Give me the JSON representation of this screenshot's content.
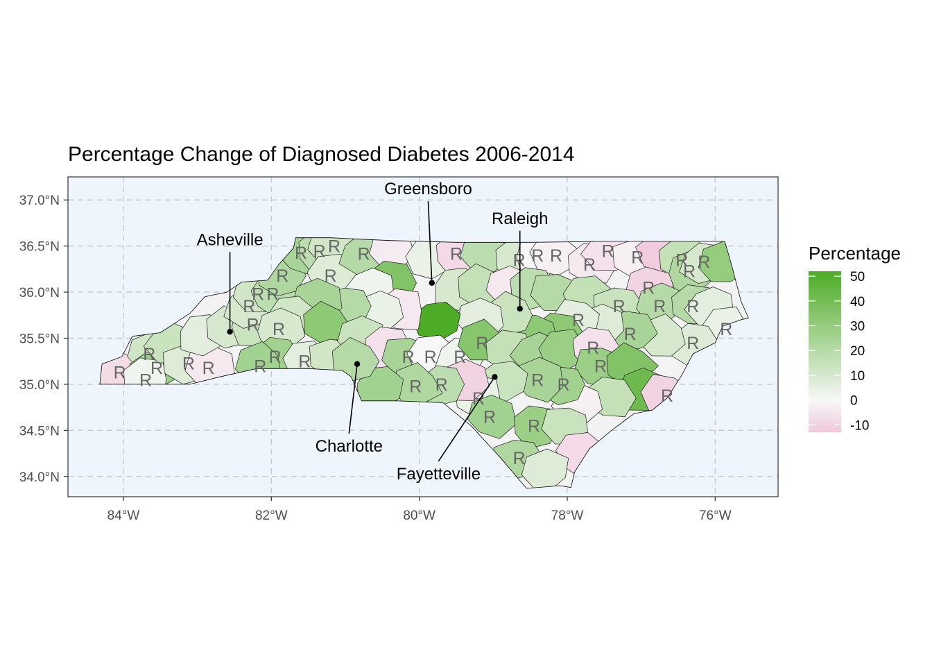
{
  "chart_data": {
    "type": "choropleth-map",
    "title": "Percentage Change of Diagnosed Diabetes 2006-2014",
    "x_ticks": [
      "84°W",
      "82°W",
      "80°W",
      "78°W",
      "76°W"
    ],
    "y_ticks": [
      "34.0°N",
      "34.5°N",
      "35.0°N",
      "35.5°N",
      "36.0°N",
      "36.5°N",
      "37.0°N"
    ],
    "xlim": [
      -84.75,
      -75.15
    ],
    "ylim": [
      33.78,
      37.25
    ],
    "grid": "dashed",
    "panel_background": "#eef5fd",
    "legend": {
      "title": "Percentage",
      "position": "right",
      "ticks": [
        "50",
        "40",
        "30",
        "20",
        "10",
        "0",
        "-10"
      ],
      "range": [
        -13,
        52
      ],
      "colors": {
        "low": "#f0c8dc",
        "mid": "#f7f7f7",
        "high": "#4dac26"
      }
    },
    "marker_letter": "R",
    "cities": [
      {
        "name": "Greensboro",
        "lon": -79.83,
        "lat": 36.1,
        "label_lon": -79.88,
        "label_lat": 37.06
      },
      {
        "name": "Raleigh",
        "lon": -78.64,
        "lat": 35.82,
        "label_lon": -78.64,
        "label_lat": 36.74
      },
      {
        "name": "Asheville",
        "lon": -82.56,
        "lat": 35.57,
        "label_lon": -82.56,
        "label_lat": 36.51
      },
      {
        "name": "Charlotte",
        "lon": -80.84,
        "lat": 35.22,
        "label_lon": -80.95,
        "label_lat": 34.27
      },
      {
        "name": "Fayetteville",
        "lon": -78.98,
        "lat": 35.08,
        "label_lon": -79.74,
        "label_lat": 33.97
      }
    ],
    "counties": [
      {
        "lon": -84.05,
        "lat": 35.13,
        "value": -7,
        "r": true
      },
      {
        "lon": -83.65,
        "lat": 35.33,
        "value": 12,
        "r": true
      },
      {
        "lon": -83.55,
        "lat": 35.18,
        "value": 28,
        "r": true
      },
      {
        "lon": -83.7,
        "lat": 35.05,
        "value": 2,
        "r": true
      },
      {
        "lon": -83.35,
        "lat": 35.45,
        "value": 14,
        "r": false
      },
      {
        "lon": -83.12,
        "lat": 35.23,
        "value": 8,
        "r": true
      },
      {
        "lon": -82.85,
        "lat": 35.18,
        "value": -4,
        "r": true
      },
      {
        "lon": -82.95,
        "lat": 35.55,
        "value": 6,
        "r": false
      },
      {
        "lon": -82.56,
        "lat": 35.6,
        "value": 10,
        "r": false
      },
      {
        "lon": -82.25,
        "lat": 35.65,
        "value": 14,
        "r": true
      },
      {
        "lon": -82.3,
        "lat": 35.85,
        "value": 10,
        "r": true
      },
      {
        "lon": -82.18,
        "lat": 35.98,
        "value": 12,
        "r": true
      },
      {
        "lon": -81.98,
        "lat": 35.98,
        "value": 18,
        "r": true
      },
      {
        "lon": -81.85,
        "lat": 36.18,
        "value": 22,
        "r": true
      },
      {
        "lon": -81.6,
        "lat": 36.43,
        "value": 24,
        "r": true
      },
      {
        "lon": -81.35,
        "lat": 36.45,
        "value": 18,
        "r": true
      },
      {
        "lon": -81.15,
        "lat": 36.5,
        "value": 12,
        "r": true
      },
      {
        "lon": -81.2,
        "lat": 36.18,
        "value": 8,
        "r": true
      },
      {
        "lon": -80.75,
        "lat": 36.42,
        "value": 20,
        "r": true
      },
      {
        "lon": -80.35,
        "lat": 36.45,
        "value": -3,
        "r": false
      },
      {
        "lon": -80.4,
        "lat": 36.1,
        "value": 36,
        "r": false
      },
      {
        "lon": -80.65,
        "lat": 36.05,
        "value": 2,
        "r": false
      },
      {
        "lon": -79.85,
        "lat": 36.35,
        "value": 4,
        "r": false
      },
      {
        "lon": -79.5,
        "lat": 36.42,
        "value": -8,
        "r": true
      },
      {
        "lon": -79.1,
        "lat": 36.42,
        "value": 18,
        "r": false
      },
      {
        "lon": -78.65,
        "lat": 36.35,
        "value": 10,
        "r": true
      },
      {
        "lon": -78.4,
        "lat": 36.4,
        "value": 0,
        "r": true
      },
      {
        "lon": -78.15,
        "lat": 36.4,
        "value": -2,
        "r": true
      },
      {
        "lon": -77.7,
        "lat": 36.3,
        "value": -4,
        "r": true
      },
      {
        "lon": -77.45,
        "lat": 36.45,
        "value": -6,
        "r": true
      },
      {
        "lon": -77.05,
        "lat": 36.38,
        "value": -2,
        "r": true
      },
      {
        "lon": -76.9,
        "lat": 36.05,
        "value": -10,
        "r": true
      },
      {
        "lon": -76.7,
        "lat": 36.45,
        "value": -12,
        "r": false
      },
      {
        "lon": -76.45,
        "lat": 36.35,
        "value": 16,
        "r": true
      },
      {
        "lon": -76.35,
        "lat": 36.23,
        "value": 22,
        "r": true
      },
      {
        "lon": -76.15,
        "lat": 36.33,
        "value": 10,
        "r": true
      },
      {
        "lon": -75.9,
        "lat": 36.3,
        "value": 30,
        "r": false
      },
      {
        "lon": -79.5,
        "lat": 36.05,
        "value": 10,
        "r": false
      },
      {
        "lon": -79.15,
        "lat": 36.05,
        "value": 16,
        "r": false
      },
      {
        "lon": -78.8,
        "lat": 36.05,
        "value": -4,
        "r": false
      },
      {
        "lon": -78.5,
        "lat": 36.05,
        "value": 18,
        "r": false
      },
      {
        "lon": -78.15,
        "lat": 36.0,
        "value": 20,
        "r": false
      },
      {
        "lon": -77.75,
        "lat": 35.95,
        "value": 16,
        "r": false
      },
      {
        "lon": -77.3,
        "lat": 35.85,
        "value": 14,
        "r": true
      },
      {
        "lon": -76.75,
        "lat": 35.85,
        "value": 20,
        "r": true
      },
      {
        "lon": -76.3,
        "lat": 35.85,
        "value": 20,
        "r": true
      },
      {
        "lon": -76.05,
        "lat": 35.85,
        "value": 6,
        "r": false
      },
      {
        "lon": -75.85,
        "lat": 35.6,
        "value": 4,
        "r": true
      },
      {
        "lon": -76.3,
        "lat": 35.45,
        "value": 8,
        "r": true
      },
      {
        "lon": -76.7,
        "lat": 35.5,
        "value": 10,
        "r": false
      },
      {
        "lon": -77.15,
        "lat": 35.55,
        "value": 24,
        "r": true
      },
      {
        "lon": -77.55,
        "lat": 35.65,
        "value": 8,
        "r": false
      },
      {
        "lon": -77.85,
        "lat": 35.7,
        "value": 6,
        "r": true
      },
      {
        "lon": -78.15,
        "lat": 35.55,
        "value": 32,
        "r": false
      },
      {
        "lon": -78.45,
        "lat": 35.55,
        "value": 32,
        "r": false
      },
      {
        "lon": -78.75,
        "lat": 35.75,
        "value": 14,
        "r": false
      },
      {
        "lon": -79.2,
        "lat": 35.7,
        "value": 6,
        "r": false
      },
      {
        "lon": -79.75,
        "lat": 35.7,
        "value": 52,
        "r": false
      },
      {
        "lon": -80.25,
        "lat": 35.8,
        "value": -4,
        "r": false
      },
      {
        "lon": -80.55,
        "lat": 35.8,
        "value": 4,
        "r": false
      },
      {
        "lon": -80.95,
        "lat": 35.85,
        "value": 20,
        "r": false
      },
      {
        "lon": -81.4,
        "lat": 35.9,
        "value": 24,
        "r": false
      },
      {
        "lon": -81.75,
        "lat": 35.75,
        "value": 12,
        "r": false
      },
      {
        "lon": -81.25,
        "lat": 35.65,
        "value": 32,
        "r": false
      },
      {
        "lon": -81.9,
        "lat": 35.6,
        "value": 10,
        "r": true
      },
      {
        "lon": -81.95,
        "lat": 35.3,
        "value": 26,
        "r": true
      },
      {
        "lon": -82.15,
        "lat": 35.2,
        "value": 26,
        "r": true
      },
      {
        "lon": -81.55,
        "lat": 35.25,
        "value": 6,
        "r": true
      },
      {
        "lon": -81.15,
        "lat": 35.3,
        "value": 12,
        "r": false
      },
      {
        "lon": -80.8,
        "lat": 35.5,
        "value": 14,
        "r": false
      },
      {
        "lon": -80.45,
        "lat": 35.4,
        "value": -6,
        "r": false
      },
      {
        "lon": -80.15,
        "lat": 35.3,
        "value": 24,
        "r": true
      },
      {
        "lon": -79.85,
        "lat": 35.3,
        "value": 0,
        "r": true
      },
      {
        "lon": -79.45,
        "lat": 35.3,
        "value": 2,
        "r": true
      },
      {
        "lon": -79.15,
        "lat": 35.45,
        "value": 34,
        "r": true
      },
      {
        "lon": -78.8,
        "lat": 35.35,
        "value": 16,
        "r": false
      },
      {
        "lon": -78.4,
        "lat": 35.35,
        "value": 24,
        "r": false
      },
      {
        "lon": -78.05,
        "lat": 35.35,
        "value": 28,
        "r": false
      },
      {
        "lon": -77.65,
        "lat": 35.4,
        "value": -6,
        "r": true
      },
      {
        "lon": -77.55,
        "lat": 35.2,
        "value": 28,
        "r": true
      },
      {
        "lon": -77.15,
        "lat": 35.2,
        "value": 36,
        "r": false
      },
      {
        "lon": -77.0,
        "lat": 34.95,
        "value": 42,
        "r": false
      },
      {
        "lon": -76.65,
        "lat": 34.88,
        "value": -10,
        "r": true
      },
      {
        "lon": -77.45,
        "lat": 34.85,
        "value": 16,
        "r": false
      },
      {
        "lon": -77.85,
        "lat": 34.8,
        "value": -2,
        "r": false
      },
      {
        "lon": -78.05,
        "lat": 35.0,
        "value": 26,
        "r": true
      },
      {
        "lon": -78.4,
        "lat": 35.05,
        "value": 24,
        "r": true
      },
      {
        "lon": -78.85,
        "lat": 35.05,
        "value": 14,
        "r": false
      },
      {
        "lon": -79.2,
        "lat": 34.85,
        "value": 4,
        "r": true
      },
      {
        "lon": -79.4,
        "lat": 35.05,
        "value": -10,
        "r": false
      },
      {
        "lon": -79.7,
        "lat": 35.0,
        "value": 18,
        "r": true
      },
      {
        "lon": -80.05,
        "lat": 34.98,
        "value": 22,
        "r": true
      },
      {
        "lon": -80.55,
        "lat": 34.98,
        "value": 26,
        "r": false
      },
      {
        "lon": -80.85,
        "lat": 35.25,
        "value": 20,
        "r": false
      },
      {
        "lon": -79.05,
        "lat": 34.65,
        "value": 26,
        "r": true
      },
      {
        "lon": -78.45,
        "lat": 34.55,
        "value": 28,
        "r": true
      },
      {
        "lon": -78.0,
        "lat": 34.55,
        "value": 14,
        "r": false
      },
      {
        "lon": -77.85,
        "lat": 34.25,
        "value": -8,
        "r": false
      },
      {
        "lon": -78.65,
        "lat": 34.2,
        "value": 22,
        "r": true
      },
      {
        "lon": -78.3,
        "lat": 34.05,
        "value": 8,
        "r": false
      }
    ]
  }
}
